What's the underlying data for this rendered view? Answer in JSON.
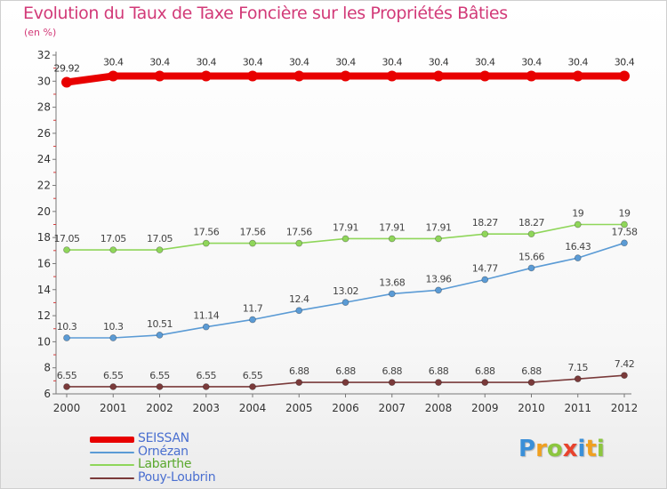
{
  "title": "Evolution du Taux de Taxe Foncière sur les Propriétés Bâties",
  "subtitle": "(en %)",
  "logo": {
    "letters": [
      "P",
      "r",
      "o",
      "x",
      "i",
      "t",
      "i"
    ],
    "colors": [
      "#3a8fd8",
      "#f0a020",
      "#8cc63f",
      "#e8432d",
      "#3a8fd8",
      "#f0a020",
      "#8cc63f"
    ]
  },
  "chart_data": {
    "type": "line",
    "x": [
      "2000",
      "2001",
      "2002",
      "2003",
      "2004",
      "2005",
      "2006",
      "2007",
      "2008",
      "2009",
      "2010",
      "2011",
      "2012"
    ],
    "ylim": [
      6,
      32
    ],
    "yticks": [
      6,
      8,
      10,
      12,
      14,
      16,
      18,
      20,
      22,
      24,
      26,
      28,
      30,
      32
    ],
    "grid": false,
    "legend": "bottom-left",
    "series": [
      {
        "name": "SEISSAN",
        "color": "#e80000",
        "labelColor": "#4a6fd0",
        "values": [
          29.92,
          30.4,
          30.4,
          30.4,
          30.4,
          30.4,
          30.4,
          30.4,
          30.4,
          30.4,
          30.4,
          30.4,
          30.4
        ],
        "labels": [
          "29.92",
          "30.4",
          "30.4",
          "30.4",
          "30.4",
          "30.4",
          "30.4",
          "30.4",
          "30.4",
          "30.4",
          "30.4",
          "30.4",
          "30.4"
        ]
      },
      {
        "name": "Ornézan",
        "color": "#5b9bd5",
        "labelColor": "#4a6fd0",
        "values": [
          10.3,
          10.3,
          10.51,
          11.14,
          11.7,
          12.4,
          13.02,
          13.68,
          13.96,
          14.77,
          15.66,
          16.43,
          17.58
        ],
        "labels": [
          "10.3",
          "10.3",
          "10.51",
          "11.14",
          "11.7",
          "12.4",
          "13.02",
          "13.68",
          "13.96",
          "14.77",
          "15.66",
          "16.43",
          "17.58"
        ]
      },
      {
        "name": "Labarthe",
        "color": "#8fd65a",
        "labelColor": "#5aa82e",
        "values": [
          17.05,
          17.05,
          17.05,
          17.56,
          17.56,
          17.56,
          17.91,
          17.91,
          17.91,
          18.27,
          18.27,
          19,
          19
        ],
        "labels": [
          "17.05",
          "17.05",
          "17.05",
          "17.56",
          "17.56",
          "17.56",
          "17.91",
          "17.91",
          "17.91",
          "18.27",
          "18.27",
          "19",
          "19"
        ]
      },
      {
        "name": "Pouy-Loubrin",
        "color": "#7a3a3a",
        "labelColor": "#4a6fd0",
        "values": [
          6.55,
          6.55,
          6.55,
          6.55,
          6.55,
          6.88,
          6.88,
          6.88,
          6.88,
          6.88,
          6.88,
          7.15,
          7.42
        ],
        "labels": [
          "6.55",
          "6.55",
          "6.55",
          "6.55",
          "6.55",
          "6.88",
          "6.88",
          "6.88",
          "6.88",
          "6.88",
          "6.88",
          "7.15",
          "7.42"
        ]
      }
    ]
  }
}
